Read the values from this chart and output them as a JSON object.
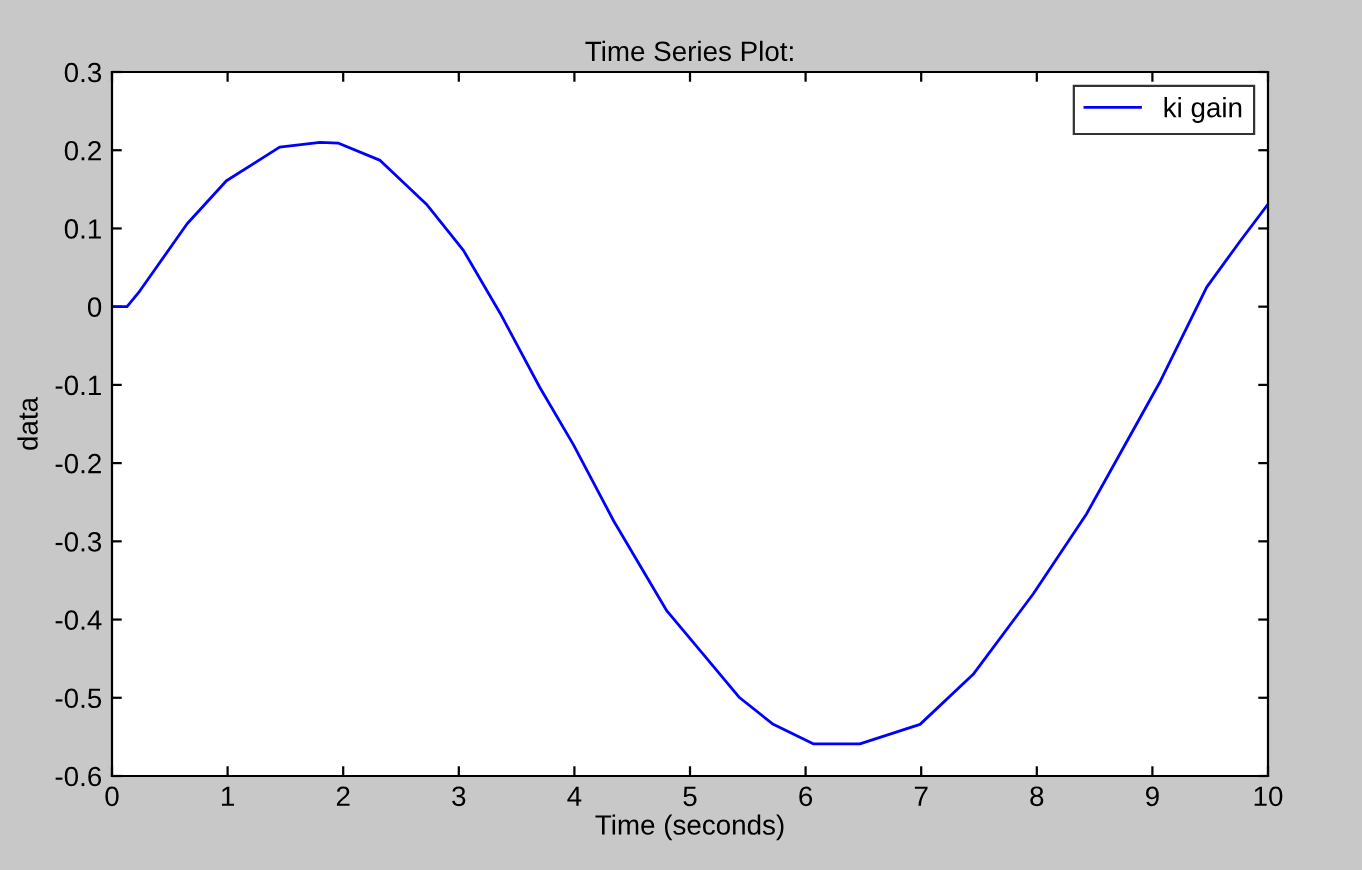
{
  "chart_data": {
    "type": "line",
    "title": "Time Series Plot:",
    "xlabel": "Time (seconds)",
    "ylabel": "data",
    "xlim": [
      0,
      10
    ],
    "ylim": [
      -0.6,
      0.3
    ],
    "xticks": [
      0,
      1,
      2,
      3,
      4,
      5,
      6,
      7,
      8,
      9,
      10
    ],
    "yticks": [
      -0.6,
      -0.5,
      -0.4,
      -0.3,
      -0.2,
      -0.1,
      0,
      0.1,
      0.2,
      0.3
    ],
    "grid": false,
    "legend": "top right",
    "line_style": "solid",
    "marker": "none",
    "series": [
      {
        "name": "ki gain",
        "color": "#0000ff",
        "x": [
          0,
          0.13,
          0.24,
          0.65,
          0.99,
          1.45,
          1.8,
          1.96,
          2.32,
          2.72,
          3.04,
          3.36,
          3.7,
          3.99,
          4.34,
          4.8,
          5.09,
          5.26,
          5.43,
          5.72,
          6.07,
          6.47,
          6.99,
          7.45,
          7.97,
          8.43,
          8.72,
          9.07,
          9.47,
          9.76,
          10
        ],
        "values": [
          0,
          0,
          0.02,
          0.106,
          0.161,
          0.204,
          0.21,
          0.209,
          0.187,
          0.131,
          0.072,
          -0.009,
          -0.103,
          -0.176,
          -0.274,
          -0.389,
          -0.44,
          -0.47,
          -0.5,
          -0.534,
          -0.559,
          -0.559,
          -0.534,
          -0.47,
          -0.367,
          -0.265,
          -0.188,
          -0.095,
          0.025,
          0.084,
          0.131
        ]
      }
    ]
  }
}
